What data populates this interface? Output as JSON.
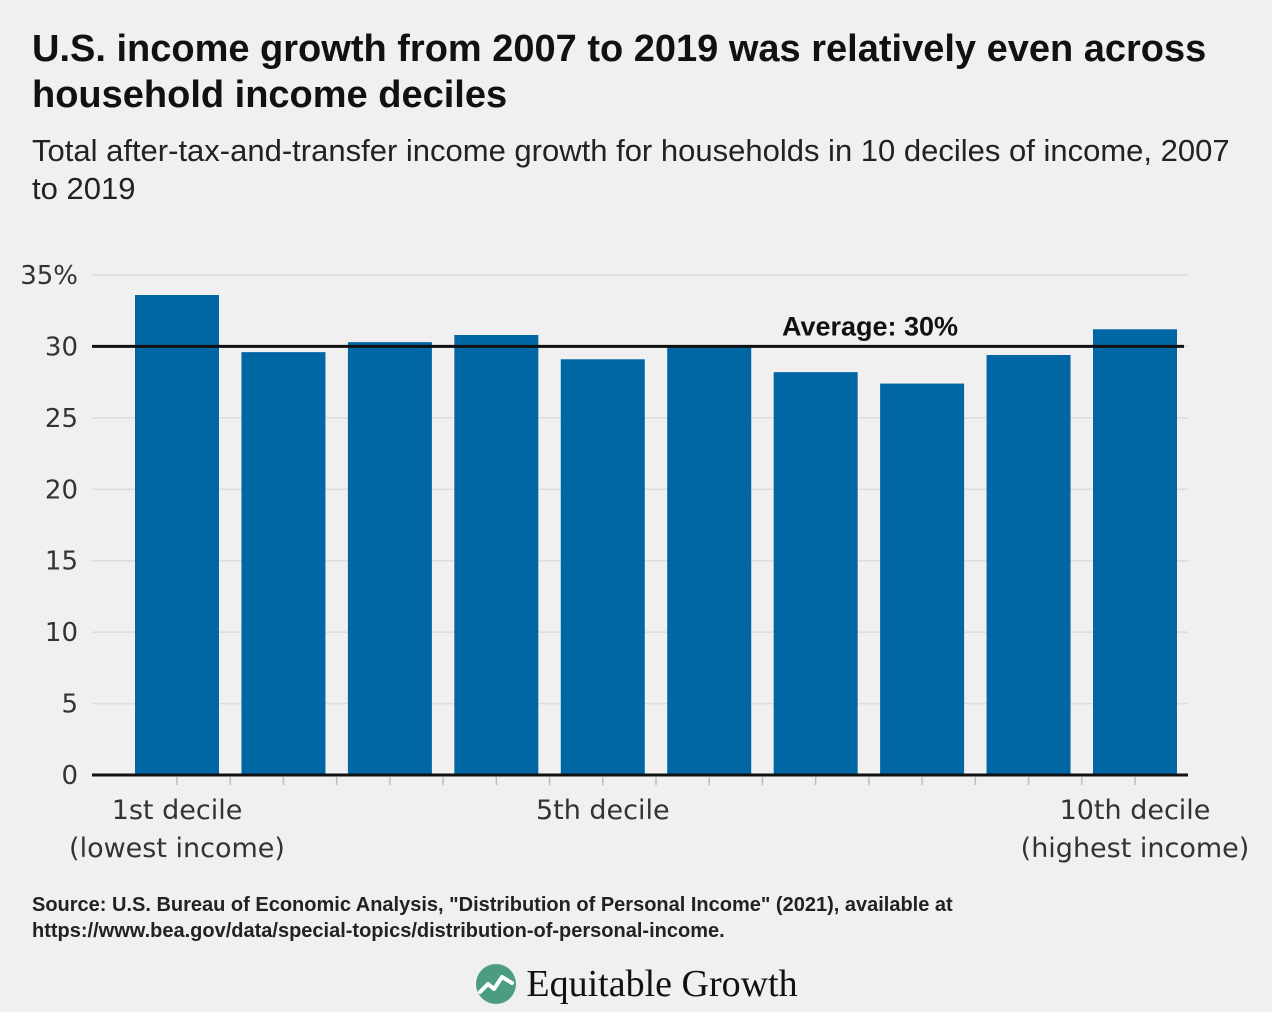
{
  "header": {
    "title": "U.S. income growth from 2007 to 2019 was relatively even across household income deciles",
    "subtitle": "Total after-tax-and-transfer income growth for households in 10 deciles of income, 2007 to 2019"
  },
  "chart_data": {
    "type": "bar",
    "categories": [
      "1",
      "2",
      "3",
      "4",
      "5",
      "6",
      "7",
      "8",
      "9",
      "10"
    ],
    "values": [
      33.6,
      29.6,
      30.3,
      30.8,
      29.1,
      30.0,
      28.2,
      27.4,
      29.4,
      31.2
    ],
    "x_tick_labels": [
      {
        "index": 0,
        "line1": "1st decile",
        "line2": "(lowest income)"
      },
      {
        "index": 4,
        "line1": "5th decile",
        "line2": ""
      },
      {
        "index": 9,
        "line1": "10th decile",
        "line2": "(highest income)"
      }
    ],
    "y_ticks": [
      0,
      5,
      10,
      15,
      20,
      25,
      30,
      35
    ],
    "y_tick_labels": [
      "0",
      "5",
      "10",
      "15",
      "20",
      "25",
      "30",
      "35%"
    ],
    "ylim": [
      0,
      35
    ],
    "reference_line": {
      "value": 30,
      "label": "Average: 30%"
    },
    "grid": true,
    "xlabel": "",
    "ylabel": "",
    "colors": {
      "bar": "#0066a4",
      "grid": "#dcdcdc",
      "axis": "#111111",
      "background": "#f0f0f0"
    }
  },
  "footer": {
    "source": "Source: U.S. Bureau of Economic Analysis, \"Distribution of Personal Income\" (2021), available at https://www.bea.gov/data/special-topics/distribution-of-personal-income.",
    "brand": "Equitable Growth",
    "brand_icon": "equitable-growth-logo-icon",
    "brand_color": "#4a9e7f"
  }
}
